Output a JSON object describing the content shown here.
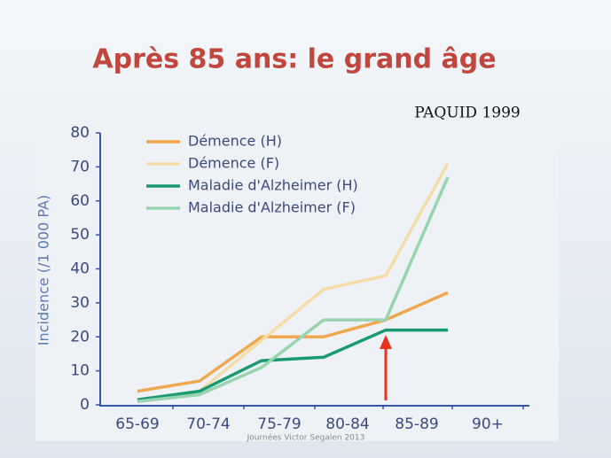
{
  "chart_data": {
    "type": "line",
    "title": "Après 85 ans: le grand âge",
    "source": "PAQUID 1999",
    "footer": "Journées Victor Segalen 2013",
    "y_label": "Incidence (/1 000 PA)",
    "categories": [
      "65-69",
      "70-74",
      "75-79",
      "80-84",
      "85-89",
      "90+"
    ],
    "ylim": [
      0,
      80
    ],
    "yticks": [
      0,
      10,
      20,
      30,
      40,
      50,
      60,
      70,
      80
    ],
    "legend": "upper left",
    "series": [
      {
        "name": "Démence (H)",
        "color": "#f0a850",
        "values": [
          4,
          7,
          20,
          20,
          25,
          33
        ]
      },
      {
        "name": "Démence (F)",
        "color": "#f5dca8",
        "values": [
          1,
          4,
          19,
          34,
          38,
          71
        ]
      },
      {
        "name": "Maladie d'Alzheimer (H)",
        "color": "#1a9a70",
        "values": [
          1.5,
          4,
          13,
          14,
          22,
          22
        ]
      },
      {
        "name": "Maladie d'Alzheimer (F)",
        "color": "#98d4ae",
        "values": [
          1,
          3,
          11,
          25,
          25,
          67
        ]
      }
    ]
  }
}
